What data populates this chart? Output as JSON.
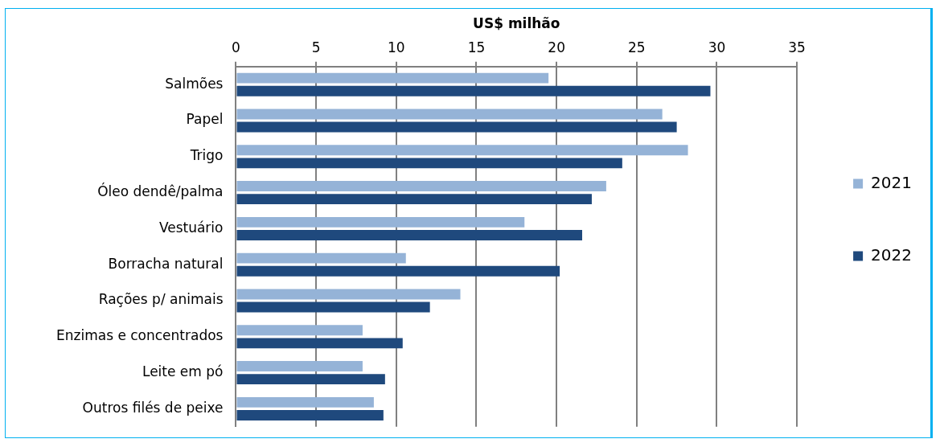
{
  "chart_data": {
    "type": "bar",
    "orientation": "horizontal",
    "xlabel": "US$ milhão",
    "categories": [
      "Salmões",
      "Papel",
      "Trigo",
      "Óleo dendê/palma",
      "Vestuário",
      "Borracha natural",
      "Rações p/ animais",
      "Enzimas e concentrados",
      "Leite em pó",
      "Outros filés de peixe"
    ],
    "series": [
      {
        "name": "2021",
        "color": "#95b3d7",
        "values": [
          19.5,
          26.6,
          28.2,
          23.1,
          18.0,
          10.6,
          14.0,
          7.9,
          7.9,
          8.6
        ]
      },
      {
        "name": "2022",
        "color": "#1f497d",
        "values": [
          29.6,
          27.5,
          24.1,
          22.2,
          21.6,
          20.2,
          12.1,
          10.4,
          9.3,
          9.2
        ]
      }
    ],
    "xlim": [
      0,
      35
    ],
    "xticks": [
      0,
      5,
      10,
      15,
      20,
      25,
      30,
      35
    ],
    "grid": "x",
    "legend": "right"
  }
}
